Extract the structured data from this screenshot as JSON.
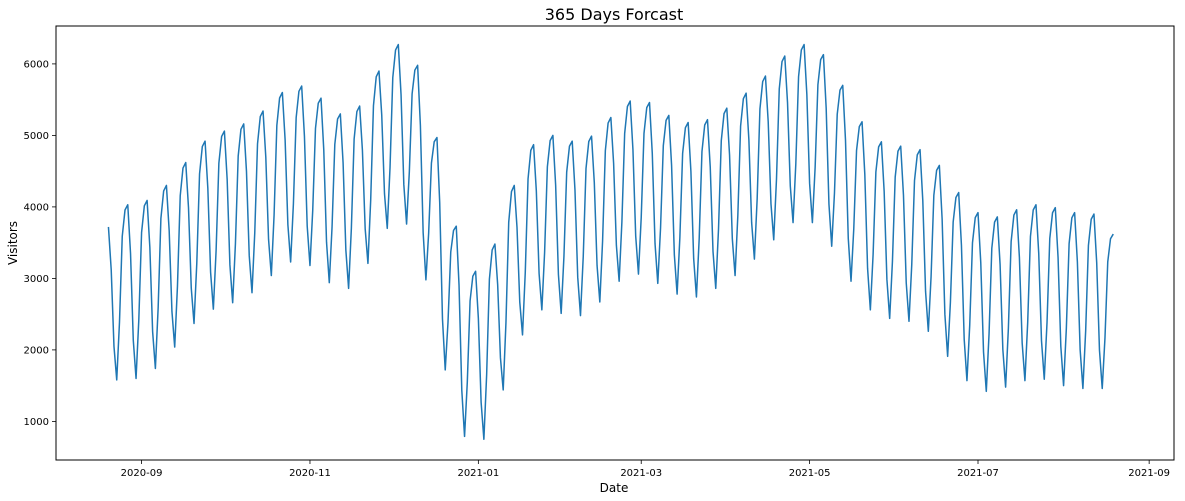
{
  "chart_data": {
    "type": "line",
    "title": "365 Days Forcast",
    "xlabel": "Date",
    "ylabel": "Visitors",
    "x_start": "2020-08-20",
    "x_end": "2021-08-19",
    "xlim": [
      "2020-08-01",
      "2021-09-10"
    ],
    "ylim": [
      460,
      6530
    ],
    "x_ticks": [
      "2020-09",
      "2020-11",
      "2021-01",
      "2021-03",
      "2021-05",
      "2021-07",
      "2021-09"
    ],
    "y_ticks": [
      1000,
      2000,
      3000,
      4000,
      5000,
      6000
    ],
    "grid": false,
    "series": [
      {
        "color": "#1f77b4",
        "week_peaks": [
          [
            "2020-08-20",
            3720
          ],
          [
            "2020-08-27",
            4030
          ],
          [
            "2020-09-03",
            4090
          ],
          [
            "2020-09-10",
            4300
          ],
          [
            "2020-09-17",
            4620
          ],
          [
            "2020-09-24",
            4920
          ],
          [
            "2020-10-01",
            5060
          ],
          [
            "2020-10-08",
            5160
          ],
          [
            "2020-10-15",
            5340
          ],
          [
            "2020-10-22",
            5600
          ],
          [
            "2020-10-29",
            5690
          ],
          [
            "2020-11-05",
            5520
          ],
          [
            "2020-11-12",
            5300
          ],
          [
            "2020-11-19",
            5410
          ],
          [
            "2020-11-26",
            5900
          ],
          [
            "2020-12-03",
            6270
          ],
          [
            "2020-12-10",
            5980
          ],
          [
            "2020-12-17",
            4970
          ],
          [
            "2020-12-24",
            3730
          ],
          [
            "2020-12-31",
            3100
          ],
          [
            "2021-01-07",
            3480
          ],
          [
            "2021-01-14",
            4300
          ],
          [
            "2021-01-21",
            4870
          ],
          [
            "2021-01-28",
            5000
          ],
          [
            "2021-02-04",
            4920
          ],
          [
            "2021-02-11",
            4990
          ],
          [
            "2021-02-18",
            5250
          ],
          [
            "2021-02-25",
            5480
          ],
          [
            "2021-03-04",
            5460
          ],
          [
            "2021-03-11",
            5280
          ],
          [
            "2021-03-18",
            5180
          ],
          [
            "2021-03-25",
            5220
          ],
          [
            "2021-04-01",
            5380
          ],
          [
            "2021-04-08",
            5590
          ],
          [
            "2021-04-15",
            5830
          ],
          [
            "2021-04-22",
            6110
          ],
          [
            "2021-04-29",
            6270
          ],
          [
            "2021-05-06",
            6130
          ],
          [
            "2021-05-13",
            5700
          ],
          [
            "2021-05-20",
            5190
          ],
          [
            "2021-05-27",
            4910
          ],
          [
            "2021-06-03",
            4850
          ],
          [
            "2021-06-10",
            4800
          ],
          [
            "2021-06-17",
            4580
          ],
          [
            "2021-06-24",
            4200
          ],
          [
            "2021-07-01",
            3920
          ],
          [
            "2021-07-08",
            3860
          ],
          [
            "2021-07-15",
            3960
          ],
          [
            "2021-07-22",
            4030
          ],
          [
            "2021-07-29",
            3990
          ],
          [
            "2021-08-05",
            3920
          ],
          [
            "2021-08-12",
            3900
          ],
          [
            "2021-08-19",
            3620
          ]
        ],
        "week_troughs": [
          [
            "2020-08-23",
            1580
          ],
          [
            "2020-08-30",
            1600
          ],
          [
            "2020-09-06",
            1740
          ],
          [
            "2020-09-13",
            2040
          ],
          [
            "2020-09-20",
            2370
          ],
          [
            "2020-09-27",
            2570
          ],
          [
            "2020-10-04",
            2660
          ],
          [
            "2020-10-11",
            2800
          ],
          [
            "2020-10-18",
            3040
          ],
          [
            "2020-10-25",
            3230
          ],
          [
            "2020-11-01",
            3180
          ],
          [
            "2020-11-08",
            2940
          ],
          [
            "2020-11-15",
            2860
          ],
          [
            "2020-11-22",
            3210
          ],
          [
            "2020-11-29",
            3700
          ],
          [
            "2020-12-06",
            3760
          ],
          [
            "2020-12-13",
            2980
          ],
          [
            "2020-12-20",
            1720
          ],
          [
            "2020-12-27",
            790
          ],
          [
            "2021-01-03",
            750
          ],
          [
            "2021-01-10",
            1440
          ],
          [
            "2021-01-17",
            2210
          ],
          [
            "2021-01-24",
            2560
          ],
          [
            "2021-01-31",
            2510
          ],
          [
            "2021-02-07",
            2480
          ],
          [
            "2021-02-14",
            2670
          ],
          [
            "2021-02-21",
            2960
          ],
          [
            "2021-02-28",
            3060
          ],
          [
            "2021-03-07",
            2930
          ],
          [
            "2021-03-14",
            2780
          ],
          [
            "2021-03-21",
            2740
          ],
          [
            "2021-03-28",
            2860
          ],
          [
            "2021-04-04",
            3040
          ],
          [
            "2021-04-11",
            3270
          ],
          [
            "2021-04-18",
            3540
          ],
          [
            "2021-04-25",
            3780
          ],
          [
            "2021-05-02",
            3780
          ],
          [
            "2021-05-09",
            3450
          ],
          [
            "2021-05-16",
            2960
          ],
          [
            "2021-05-23",
            2560
          ],
          [
            "2021-05-30",
            2440
          ],
          [
            "2021-06-06",
            2400
          ],
          [
            "2021-06-13",
            2260
          ],
          [
            "2021-06-20",
            1910
          ],
          [
            "2021-06-27",
            1570
          ],
          [
            "2021-07-04",
            1420
          ],
          [
            "2021-07-11",
            1480
          ],
          [
            "2021-07-18",
            1570
          ],
          [
            "2021-07-25",
            1590
          ],
          [
            "2021-08-01",
            1500
          ],
          [
            "2021-08-08",
            1460
          ],
          [
            "2021-08-15",
            1460
          ]
        ]
      }
    ]
  }
}
